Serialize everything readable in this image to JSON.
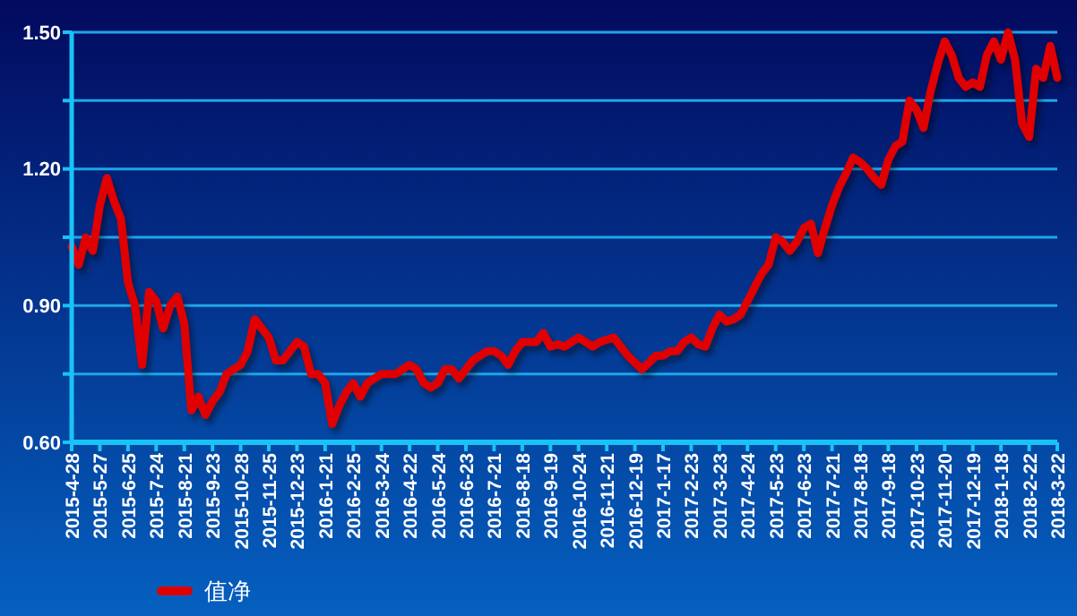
{
  "chart_data": {
    "type": "line",
    "categories": [
      "2015-4-28",
      null,
      null,
      null,
      "2015-5-27",
      null,
      null,
      null,
      "2015-6-25",
      null,
      null,
      null,
      "2015-7-24",
      null,
      null,
      null,
      "2015-8-21",
      null,
      null,
      null,
      "2015-9-23",
      null,
      null,
      null,
      "2015-10-28",
      null,
      null,
      null,
      "2015-11-25",
      null,
      null,
      null,
      "2015-12-23",
      null,
      null,
      null,
      "2016-1-21",
      null,
      null,
      null,
      "2016-2-25",
      null,
      null,
      null,
      "2016-3-24",
      null,
      null,
      null,
      "2016-4-22",
      null,
      null,
      null,
      "2016-5-24",
      null,
      null,
      null,
      "2016-6-23",
      null,
      null,
      null,
      "2016-7-21",
      null,
      null,
      null,
      "2016-8-18",
      null,
      null,
      null,
      "2016-9-19",
      null,
      null,
      null,
      "2016-10-24",
      null,
      null,
      null,
      "2016-11-21",
      null,
      null,
      null,
      "2016-12-19",
      null,
      null,
      null,
      "2017-1-17",
      null,
      null,
      null,
      "2017-2-23",
      null,
      null,
      null,
      "2017-3-23",
      null,
      null,
      null,
      "2017-4-24",
      null,
      null,
      null,
      "2017-5-23",
      null,
      null,
      null,
      "2017-6-23",
      null,
      null,
      null,
      "2017-7-21",
      null,
      null,
      null,
      "2017-8-18",
      null,
      null,
      null,
      "2017-9-18",
      null,
      null,
      null,
      "2017-10-23",
      null,
      null,
      null,
      "2017-11-20",
      null,
      null,
      null,
      "2017-12-19",
      null,
      null,
      null,
      "2018-1-18",
      null,
      null,
      null,
      "2018-2-22",
      null,
      null,
      null,
      "2018-3-22"
    ],
    "series": [
      {
        "name": "值净",
        "color": "#e00000",
        "values": [
          1.03,
          0.99,
          1.05,
          1.02,
          1.12,
          1.18,
          1.13,
          1.09,
          0.95,
          0.9,
          0.77,
          0.93,
          0.91,
          0.85,
          0.9,
          0.92,
          0.86,
          0.67,
          0.7,
          0.66,
          0.69,
          0.71,
          0.75,
          0.76,
          0.77,
          0.8,
          0.87,
          0.85,
          0.83,
          0.78,
          0.78,
          0.8,
          0.82,
          0.81,
          0.75,
          0.75,
          0.73,
          0.64,
          0.68,
          0.71,
          0.73,
          0.7,
          0.73,
          0.74,
          0.75,
          0.75,
          0.75,
          0.76,
          0.77,
          0.76,
          0.73,
          0.72,
          0.73,
          0.76,
          0.76,
          0.74,
          0.76,
          0.78,
          0.79,
          0.8,
          0.8,
          0.79,
          0.77,
          0.8,
          0.82,
          0.82,
          0.82,
          0.84,
          0.81,
          0.815,
          0.81,
          0.82,
          0.83,
          0.82,
          0.81,
          0.82,
          0.825,
          0.83,
          0.81,
          0.79,
          0.775,
          0.76,
          0.775,
          0.79,
          0.79,
          0.8,
          0.8,
          0.82,
          0.83,
          0.815,
          0.81,
          0.85,
          0.88,
          0.865,
          0.87,
          0.88,
          0.91,
          0.94,
          0.97,
          0.99,
          1.05,
          1.04,
          1.02,
          1.04,
          1.07,
          1.08,
          1.015,
          1.07,
          1.12,
          1.16,
          1.19,
          1.225,
          1.215,
          1.2,
          1.18,
          1.165,
          1.22,
          1.25,
          1.26,
          1.35,
          1.33,
          1.29,
          1.37,
          1.43,
          1.48,
          1.45,
          1.4,
          1.38,
          1.39,
          1.38,
          1.45,
          1.48,
          1.44,
          1.5,
          1.44,
          1.3,
          1.27,
          1.42,
          1.4,
          1.47,
          1.4
        ]
      }
    ],
    "ylim": [
      0.6,
      1.5
    ],
    "yticks": [
      "0.60",
      {
        "value": 0.75,
        "label": null
      },
      {
        "value": 0.9,
        "label": "0.90"
      },
      {
        "value": 1.05,
        "label": null
      },
      {
        "value": 1.2,
        "label": "1.20"
      },
      {
        "value": 1.35,
        "label": null
      },
      {
        "value": 1.5,
        "label": "1.50"
      }
    ],
    "grid": "y",
    "legend": "bottom left",
    "marker": "none",
    "line_style": "solid"
  }
}
